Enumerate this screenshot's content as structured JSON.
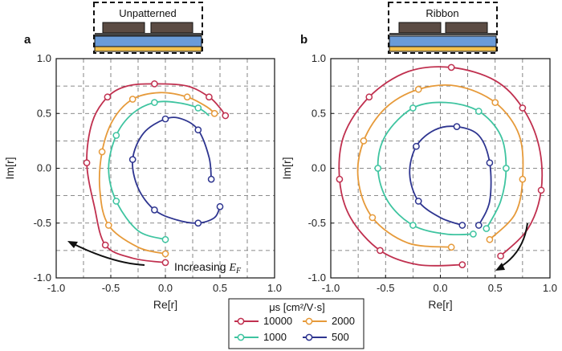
{
  "chart_data": [
    {
      "type": "line",
      "panel_label": "a",
      "inset_label": "Unpatterned",
      "xlabel": "Re[r]",
      "ylabel": "Im[r]",
      "xlim": [
        -1.0,
        1.0
      ],
      "ylim": [
        -1.0,
        1.0
      ],
      "xticks": [
        "-1.0",
        "-0.5",
        "0.0",
        "0.5",
        "1.0"
      ],
      "yticks": [
        "-1.0",
        "-0.5",
        "0.0",
        "0.5",
        "1.0"
      ],
      "grid": "dashed",
      "annotation": "Increasing E_F",
      "series": [
        {
          "name": "10000",
          "color": "#c0304f",
          "values": [
            [
              0.0,
              -0.86
            ],
            [
              -0.3,
              -0.82
            ],
            [
              -0.55,
              -0.7
            ],
            [
              -0.65,
              -0.35
            ],
            [
              -0.72,
              0.05
            ],
            [
              -0.67,
              0.42
            ],
            [
              -0.53,
              0.65
            ],
            [
              -0.35,
              0.75
            ],
            [
              -0.1,
              0.77
            ],
            [
              0.2,
              0.75
            ],
            [
              0.4,
              0.65
            ],
            [
              0.5,
              0.55
            ],
            [
              0.55,
              0.48
            ]
          ]
        },
        {
          "name": "2000",
          "color": "#e69a3a",
          "values": [
            [
              0.0,
              -0.78
            ],
            [
              -0.25,
              -0.72
            ],
            [
              -0.52,
              -0.52
            ],
            [
              -0.6,
              -0.2
            ],
            [
              -0.58,
              0.15
            ],
            [
              -0.48,
              0.44
            ],
            [
              -0.3,
              0.63
            ],
            [
              -0.05,
              0.69
            ],
            [
              0.2,
              0.65
            ],
            [
              0.38,
              0.56
            ],
            [
              0.45,
              0.5
            ]
          ]
        },
        {
          "name": "1000",
          "color": "#3ec4a0",
          "values": [
            [
              0.0,
              -0.65
            ],
            [
              -0.25,
              -0.57
            ],
            [
              -0.45,
              -0.3
            ],
            [
              -0.52,
              0.0
            ],
            [
              -0.45,
              0.3
            ],
            [
              -0.3,
              0.5
            ],
            [
              -0.1,
              0.6
            ],
            [
              0.1,
              0.6
            ],
            [
              0.3,
              0.55
            ],
            [
              0.4,
              0.48
            ]
          ]
        },
        {
          "name": "500",
          "color": "#2e3590",
          "values": [
            [
              0.5,
              -0.35
            ],
            [
              0.45,
              -0.45
            ],
            [
              0.3,
              -0.5
            ],
            [
              0.1,
              -0.47
            ],
            [
              -0.1,
              -0.38
            ],
            [
              -0.25,
              -0.18
            ],
            [
              -0.3,
              0.08
            ],
            [
              -0.2,
              0.32
            ],
            [
              0.0,
              0.45
            ],
            [
              0.15,
              0.45
            ],
            [
              0.3,
              0.35
            ],
            [
              0.4,
              0.1
            ],
            [
              0.42,
              -0.1
            ]
          ]
        }
      ]
    },
    {
      "type": "line",
      "panel_label": "b",
      "inset_label": "Ribbon",
      "xlabel": "Re[r]",
      "ylabel": "Im[r]",
      "xlim": [
        -1.0,
        1.0
      ],
      "ylim": [
        -1.0,
        1.0
      ],
      "xticks": [
        "-1.0",
        "-0.5",
        "0.0",
        "0.5",
        "1.0"
      ],
      "yticks": [
        "-1.0",
        "-0.5",
        "0.0",
        "0.5",
        "1.0"
      ],
      "grid": "dashed",
      "series": [
        {
          "name": "10000",
          "color": "#c0304f",
          "values": [
            [
              0.55,
              -0.8
            ],
            [
              0.8,
              -0.55
            ],
            [
              0.92,
              -0.2
            ],
            [
              0.9,
              0.2
            ],
            [
              0.75,
              0.55
            ],
            [
              0.5,
              0.8
            ],
            [
              0.1,
              0.92
            ],
            [
              -0.3,
              0.88
            ],
            [
              -0.65,
              0.65
            ],
            [
              -0.88,
              0.3
            ],
            [
              -0.92,
              -0.1
            ],
            [
              -0.82,
              -0.45
            ],
            [
              -0.55,
              -0.75
            ],
            [
              -0.2,
              -0.88
            ],
            [
              0.2,
              -0.88
            ]
          ]
        },
        {
          "name": "2000",
          "color": "#e69a3a",
          "values": [
            [
              0.45,
              -0.65
            ],
            [
              0.68,
              -0.42
            ],
            [
              0.75,
              -0.1
            ],
            [
              0.72,
              0.3
            ],
            [
              0.5,
              0.6
            ],
            [
              0.15,
              0.75
            ],
            [
              -0.2,
              0.72
            ],
            [
              -0.5,
              0.55
            ],
            [
              -0.7,
              0.25
            ],
            [
              -0.75,
              -0.1
            ],
            [
              -0.62,
              -0.45
            ],
            [
              -0.3,
              -0.68
            ],
            [
              0.1,
              -0.72
            ]
          ]
        },
        {
          "name": "1000",
          "color": "#3ec4a0",
          "values": [
            [
              0.42,
              -0.55
            ],
            [
              0.55,
              -0.3
            ],
            [
              0.6,
              0.0
            ],
            [
              0.55,
              0.3
            ],
            [
              0.35,
              0.52
            ],
            [
              0.05,
              0.6
            ],
            [
              -0.25,
              0.55
            ],
            [
              -0.5,
              0.3
            ],
            [
              -0.57,
              0.0
            ],
            [
              -0.48,
              -0.3
            ],
            [
              -0.25,
              -0.52
            ],
            [
              0.05,
              -0.6
            ],
            [
              0.3,
              -0.6
            ]
          ]
        },
        {
          "name": "500",
          "color": "#2e3590",
          "values": [
            [
              0.35,
              -0.52
            ],
            [
              0.45,
              -0.3
            ],
            [
              0.45,
              0.05
            ],
            [
              0.35,
              0.3
            ],
            [
              0.15,
              0.38
            ],
            [
              -0.05,
              0.35
            ],
            [
              -0.22,
              0.2
            ],
            [
              -0.28,
              -0.05
            ],
            [
              -0.2,
              -0.3
            ],
            [
              0.0,
              -0.45
            ],
            [
              0.2,
              -0.52
            ]
          ]
        }
      ]
    }
  ],
  "legend": {
    "title": "μs [cm²/V·s]",
    "entries": [
      {
        "label": "10000",
        "color": "#c0304f"
      },
      {
        "label": "2000",
        "color": "#e69a3a"
      },
      {
        "label": "1000",
        "color": "#3ec4a0"
      },
      {
        "label": "500",
        "color": "#2e3590"
      }
    ]
  },
  "inset_colors": {
    "substrate_gold": "#f2c14e",
    "oxide_blue": "#6a9bd8",
    "graphene": "#444444",
    "metal": "#5b4b43"
  }
}
